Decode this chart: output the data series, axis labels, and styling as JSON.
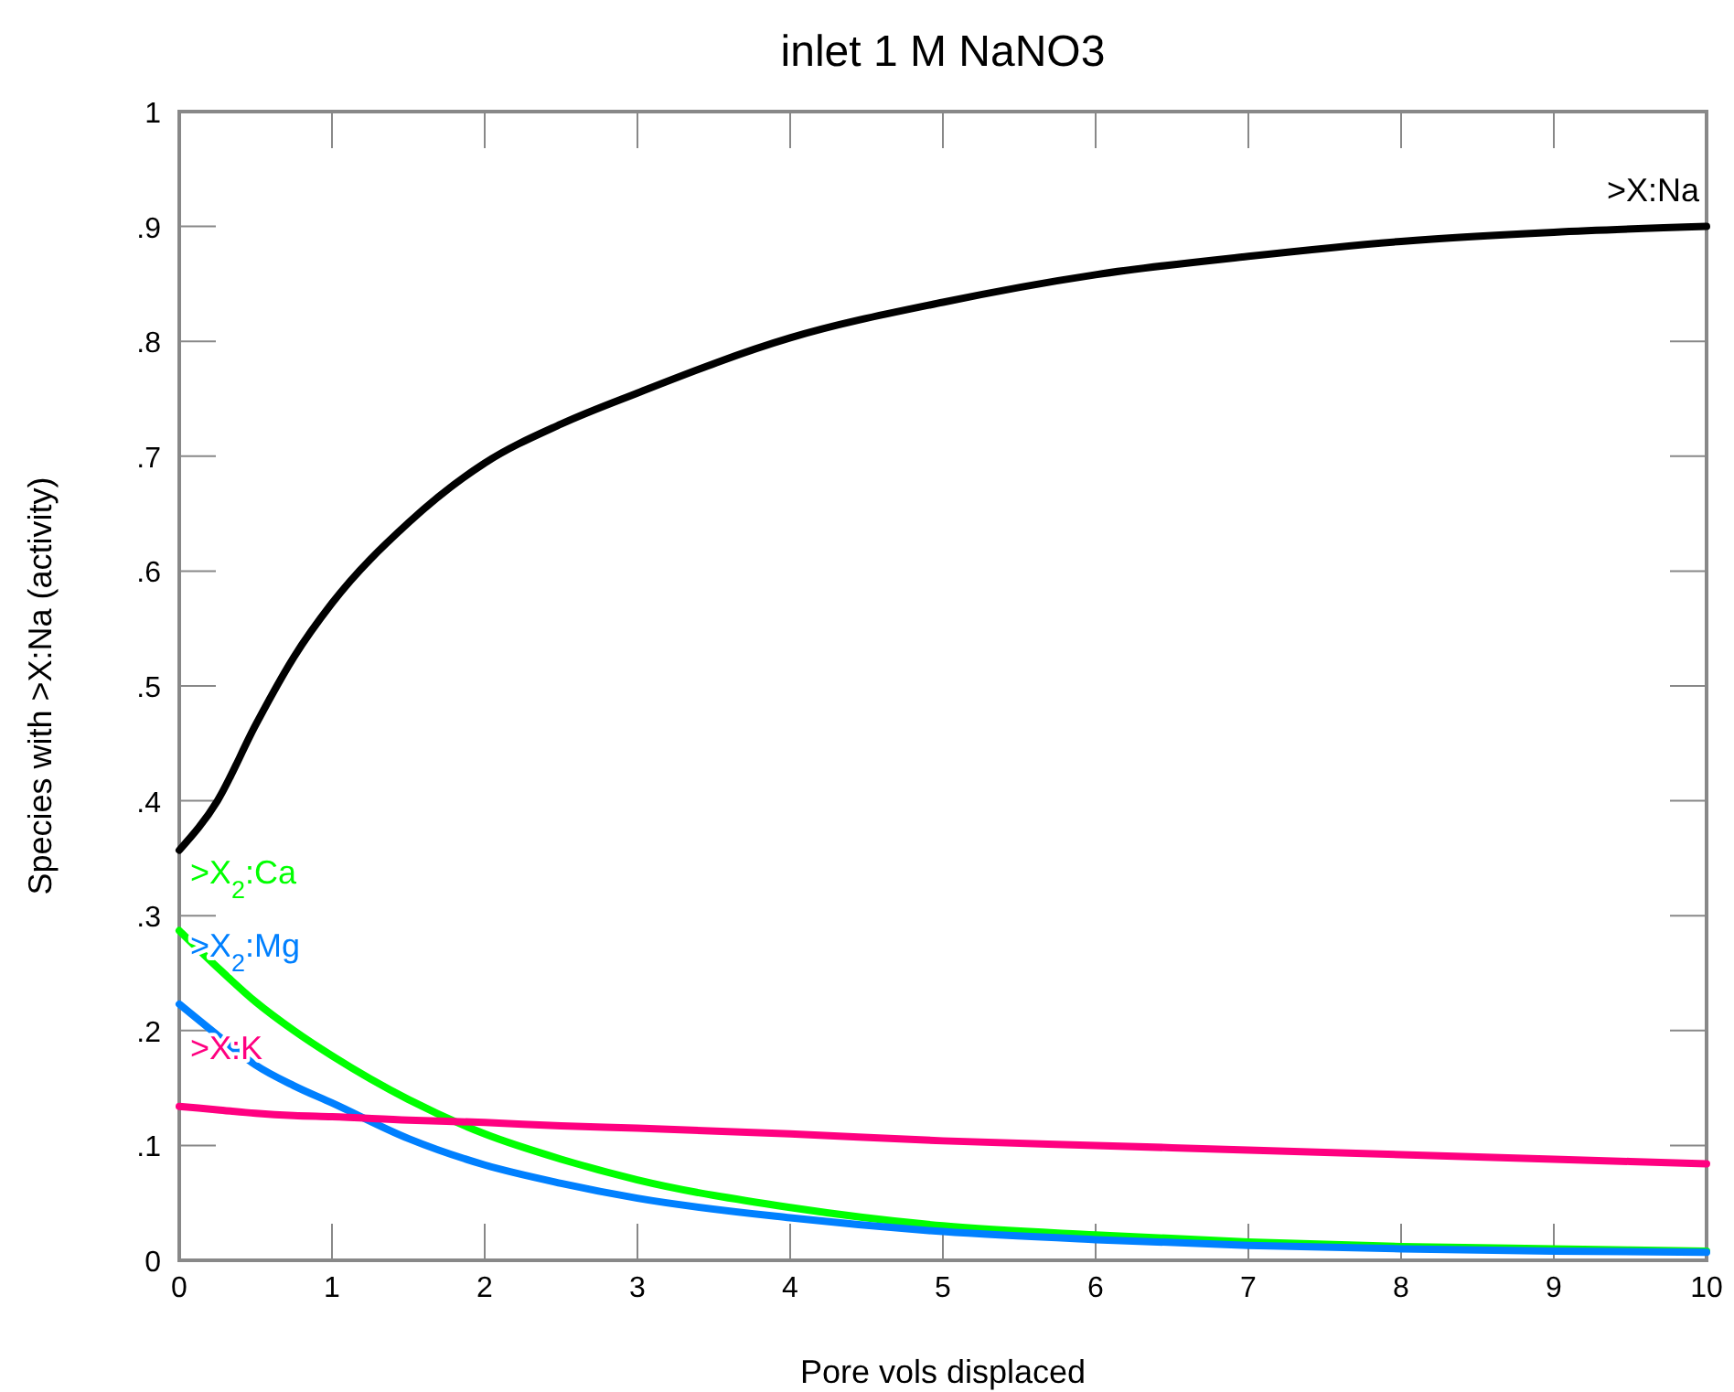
{
  "chart_data": {
    "type": "line",
    "title": "inlet 1 M NaNO3",
    "xlabel": "Pore vols displaced",
    "ylabel": "Species with >X:Na (activity)",
    "xlim": [
      0,
      10
    ],
    "ylim": [
      0,
      1
    ],
    "xticks": [
      0,
      1,
      2,
      3,
      4,
      5,
      6,
      7,
      8,
      9,
      10
    ],
    "yticks": [
      0,
      {
        "value": 0.1,
        "label": ".1"
      },
      {
        "value": 0.2,
        "label": ".2"
      },
      {
        "value": 0.3,
        "label": ".3"
      },
      {
        "value": 0.4,
        "label": ".4"
      },
      {
        "value": 0.5,
        "label": ".5"
      },
      {
        "value": 0.6,
        "label": ".6"
      },
      {
        "value": 0.7,
        "label": ".7"
      },
      {
        "value": 0.8,
        "label": ".8"
      },
      {
        "value": 0.9,
        "label": ".9"
      },
      1
    ],
    "grid": false,
    "marker": "none",
    "line_style": "solid",
    "x": [
      0,
      0.25,
      0.5,
      0.75,
      1,
      1.5,
      2,
      2.5,
      3,
      4,
      5,
      6,
      7,
      8,
      9,
      10
    ],
    "series": [
      {
        "name": ">X:Na",
        "color": "#000000",
        "values": [
          0.357,
          0.4,
          0.466,
          0.525,
          0.572,
          0.642,
          0.694,
          0.728,
          0.755,
          0.803,
          0.834,
          0.858,
          0.874,
          0.887,
          0.895,
          0.9
        ]
      },
      {
        "name": ">X$_{2}$:Ca",
        "color": "#00ff00",
        "values": [
          0.287,
          0.255,
          0.225,
          0.2,
          0.178,
          0.14,
          0.11,
          0.088,
          0.07,
          0.046,
          0.03,
          0.022,
          0.016,
          0.012,
          0.01,
          0.008
        ]
      },
      {
        "name": ">X$_{2}$:Mg",
        "color": "#0080ff",
        "values": [
          0.223,
          0.196,
          0.17,
          0.152,
          0.137,
          0.106,
          0.083,
          0.067,
          0.054,
          0.037,
          0.025,
          0.018,
          0.013,
          0.01,
          0.008,
          0.007
        ]
      },
      {
        "name": ">X:K",
        "color": "#ff0080",
        "values": [
          0.134,
          0.131,
          0.128,
          0.126,
          0.125,
          0.122,
          0.12,
          0.117,
          0.115,
          0.11,
          0.104,
          0.1,
          0.096,
          0.092,
          0.088,
          0.084
        ]
      }
    ]
  }
}
